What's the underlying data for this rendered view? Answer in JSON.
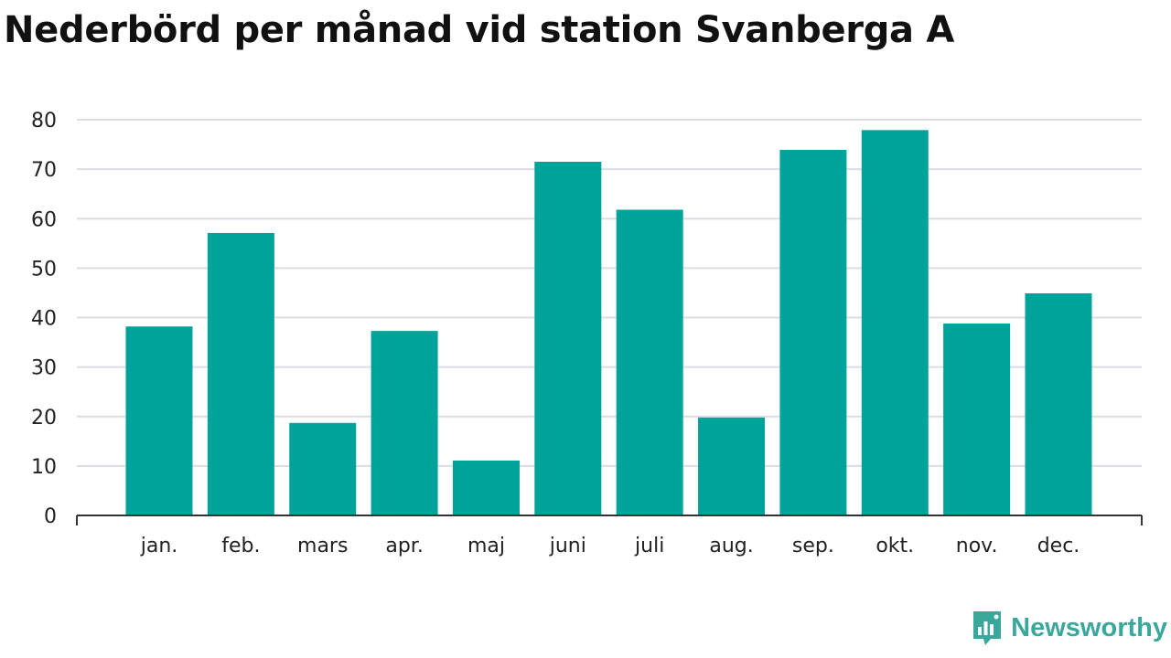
{
  "title": "Nederbörd per månad vid station Svanberga A",
  "brand": {
    "name": "Newsworthy",
    "color": "#3aa79b"
  },
  "colors": {
    "bar": "#00a39a",
    "grid": "#dcdce3",
    "axis": "#333333"
  },
  "chart_data": {
    "type": "bar",
    "categories": [
      "jan.",
      "feb.",
      "mars",
      "apr.",
      "maj",
      "juni",
      "juli",
      "aug.",
      "sep.",
      "okt.",
      "nov.",
      "dec."
    ],
    "values": [
      38.2,
      57.1,
      18.7,
      37.3,
      11.1,
      71.5,
      61.8,
      19.8,
      73.9,
      77.9,
      38.8,
      44.9
    ],
    "title": "Nederbörd per månad vid station Svanberga A",
    "xlabel": "",
    "ylabel": "",
    "ylim": [
      0,
      80
    ],
    "yticks": [
      0,
      10,
      20,
      30,
      40,
      50,
      60,
      70,
      80
    ],
    "grid": true,
    "legend": "none"
  }
}
